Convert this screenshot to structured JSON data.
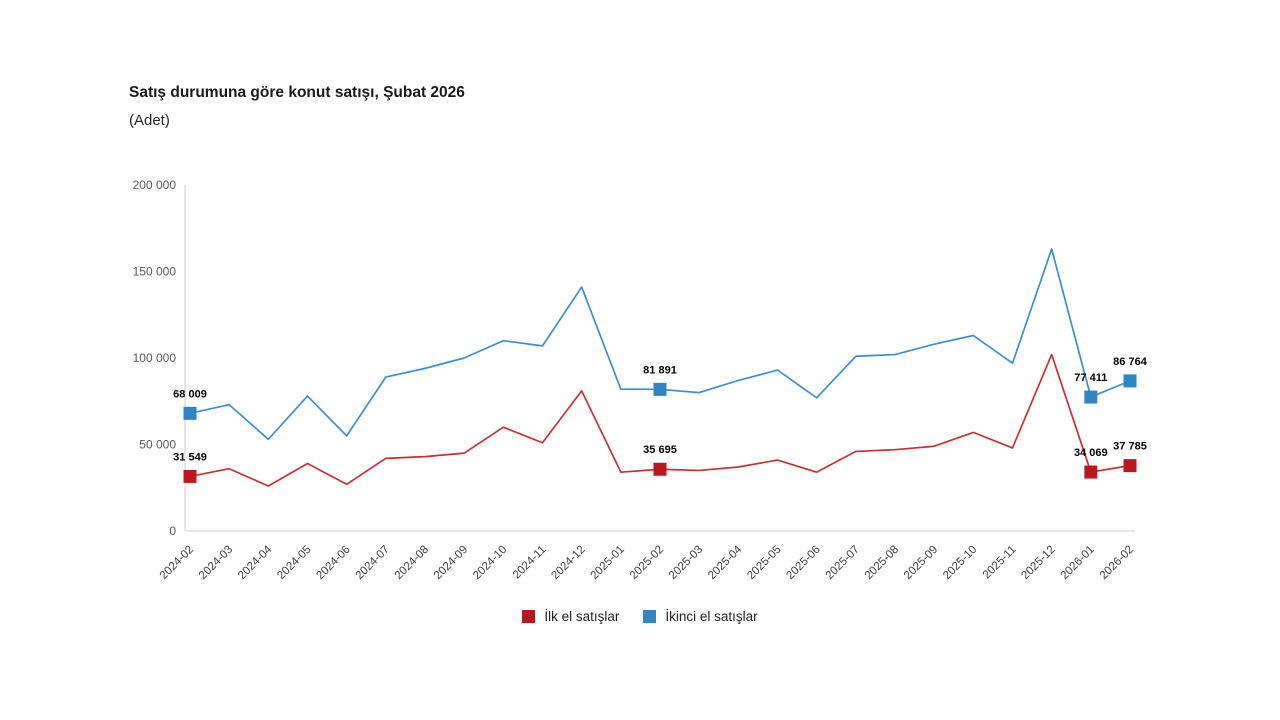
{
  "chart_data": {
    "type": "line",
    "title": "Satış durumuna göre konut satışı, Şubat 2026",
    "unit_label": "(Adet)",
    "grid": false,
    "legend_position": "bottom",
    "ylim": [
      0,
      200000
    ],
    "yticks": {
      "values": [
        0,
        50000,
        100000,
        150000,
        200000
      ],
      "labels": [
        "0",
        "50 000",
        "100 000",
        "150 000",
        "200 000"
      ]
    },
    "categories": [
      "2024-02",
      "2024-03",
      "2024-04",
      "2024-05",
      "2024-06",
      "2024-07",
      "2024-08",
      "2024-09",
      "2024-10",
      "2024-11",
      "2024-12",
      "2025-01",
      "2025-02",
      "2025-03",
      "2025-04",
      "2025-05",
      "2025-06",
      "2025-07",
      "2025-08",
      "2025-09",
      "2025-10",
      "2025-11",
      "2025-12",
      "2026-01",
      "2026-02"
    ],
    "series": [
      {
        "name": "İlk el satışlar",
        "marker_color": "#ba171f",
        "line_color": "#c53036",
        "values": [
          31549,
          36000,
          26000,
          39000,
          27000,
          42000,
          43000,
          45000,
          60000,
          51000,
          81000,
          34000,
          35695,
          35000,
          37000,
          41000,
          34000,
          46000,
          47000,
          49000,
          57000,
          48000,
          102000,
          34069,
          37785
        ],
        "labeled_points": [
          {
            "index": 0,
            "label": "31 549"
          },
          {
            "index": 12,
            "label": "35 695"
          },
          {
            "index": 23,
            "label": "34 069"
          },
          {
            "index": 24,
            "label": "37 785"
          }
        ]
      },
      {
        "name": "İkinci el satışlar",
        "marker_color": "#2e86c4",
        "line_color": "#3e8ecc",
        "values": [
          68009,
          73000,
          53000,
          78000,
          55000,
          89000,
          94000,
          100000,
          110000,
          107000,
          141000,
          82000,
          81891,
          80000,
          87000,
          93000,
          77000,
          101000,
          102000,
          108000,
          113000,
          97000,
          163000,
          77411,
          86764
        ],
        "labeled_points": [
          {
            "index": 0,
            "label": "68 009"
          },
          {
            "index": 12,
            "label": "81 891"
          },
          {
            "index": 23,
            "label": "77 411"
          },
          {
            "index": 24,
            "label": "86 764"
          }
        ]
      }
    ],
    "axis_color": "#d9d9d9",
    "ytick_text_color": "#595959",
    "xtick_text_color": "#3d3d3d",
    "data_label_color": "#000000"
  }
}
